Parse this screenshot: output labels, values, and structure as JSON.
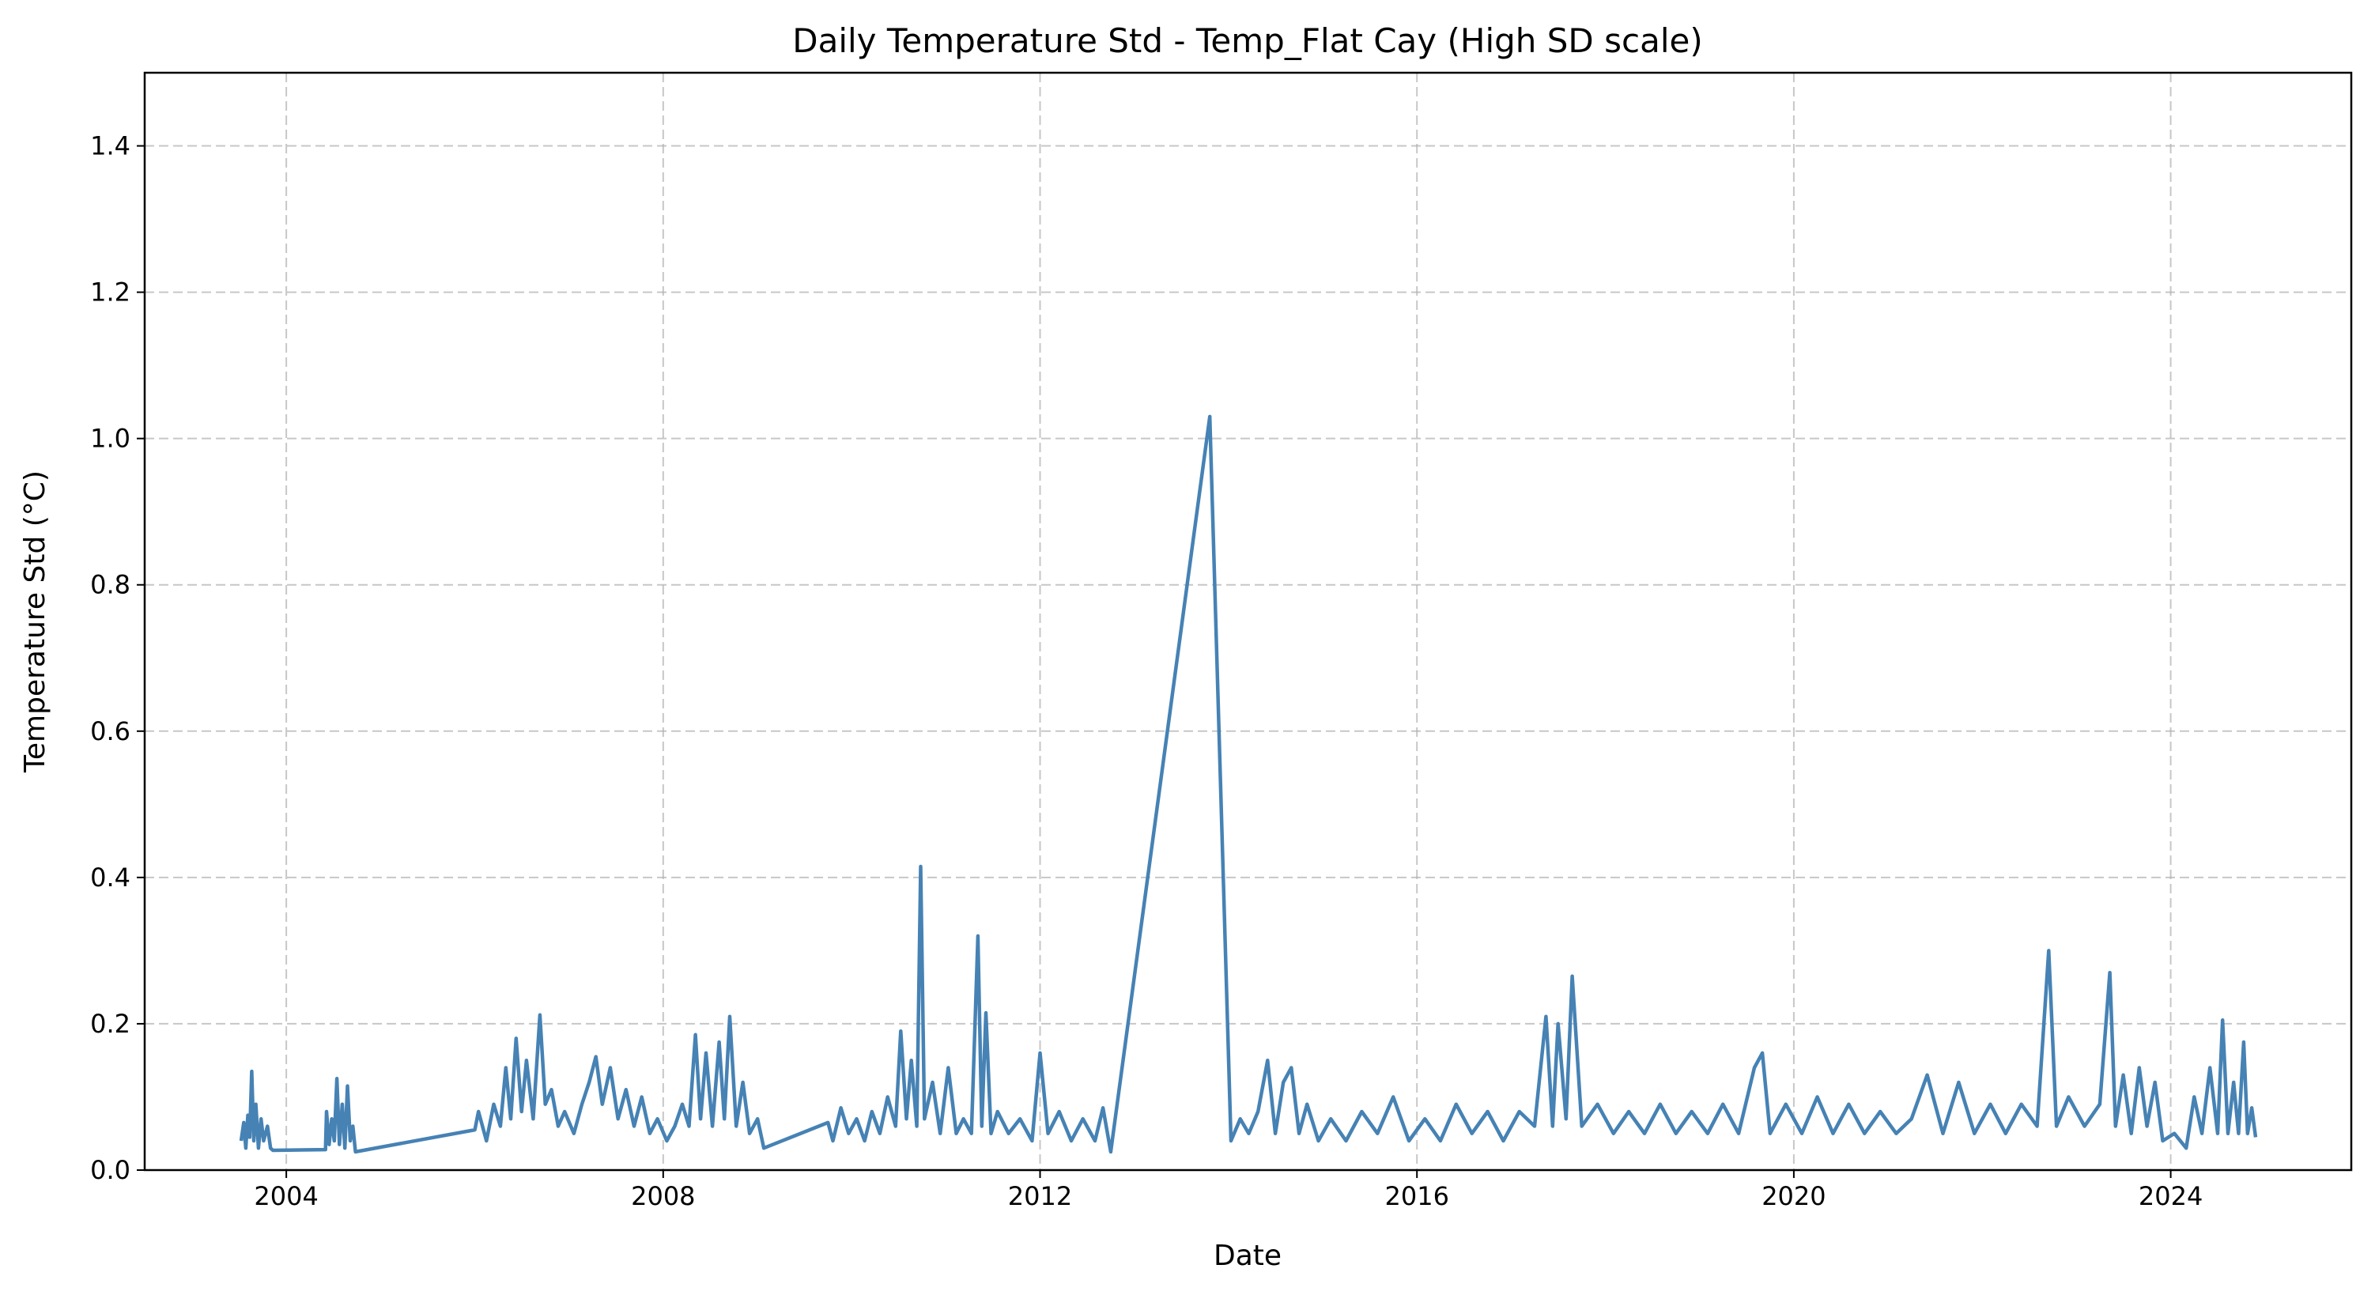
{
  "chart_data": {
    "type": "line",
    "title": "Daily Temperature Std - Temp_Flat Cay (High SD scale)",
    "xlabel": "Date",
    "ylabel": "Temperature Std (°C)",
    "xlim": [
      "2002-07-01",
      "2025-12-01"
    ],
    "ylim": [
      0,
      1.5
    ],
    "x_ticks": [
      "2004",
      "2008",
      "2012",
      "2016",
      "2020",
      "2024"
    ],
    "y_ticks": [
      "0.0",
      "0.2",
      "0.4",
      "0.6",
      "0.8",
      "1.0",
      "1.2",
      "1.4"
    ],
    "grid": true,
    "legend": "none",
    "color": "#4682b4",
    "series": [
      {
        "values": [
          [
            "2003-07-10",
            0.04
          ],
          [
            "2003-07-20",
            0.065
          ],
          [
            "2003-07-28",
            0.03
          ],
          [
            "2003-08-05",
            0.075
          ],
          [
            "2003-08-12",
            0.045
          ],
          [
            "2003-08-20",
            0.135
          ],
          [
            "2003-08-28",
            0.04
          ],
          [
            "2003-09-05",
            0.09
          ],
          [
            "2003-09-15",
            0.03
          ],
          [
            "2003-09-25",
            0.07
          ],
          [
            "2003-10-05",
            0.04
          ],
          [
            "2003-10-20",
            0.06
          ],
          [
            "2003-11-01",
            0.03
          ],
          [
            "2003-11-10",
            0.027
          ],
          [
            "2004-06-01",
            0.028
          ],
          [
            "2004-06-05",
            0.08
          ],
          [
            "2004-06-15",
            0.035
          ],
          [
            "2004-06-25",
            0.07
          ],
          [
            "2004-07-05",
            0.04
          ],
          [
            "2004-07-15",
            0.125
          ],
          [
            "2004-07-25",
            0.035
          ],
          [
            "2004-08-05",
            0.09
          ],
          [
            "2004-08-15",
            0.03
          ],
          [
            "2004-08-25",
            0.115
          ],
          [
            "2004-09-05",
            0.04
          ],
          [
            "2004-09-15",
            0.06
          ],
          [
            "2004-09-25",
            0.025
          ],
          [
            "2006-01-01",
            0.055
          ],
          [
            "2006-01-15",
            0.08
          ],
          [
            "2006-02-15",
            0.04
          ],
          [
            "2006-03-15",
            0.09
          ],
          [
            "2006-04-10",
            0.06
          ],
          [
            "2006-05-01",
            0.14
          ],
          [
            "2006-05-20",
            0.07
          ],
          [
            "2006-06-10",
            0.18
          ],
          [
            "2006-07-01",
            0.08
          ],
          [
            "2006-07-20",
            0.15
          ],
          [
            "2006-08-15",
            0.07
          ],
          [
            "2006-09-10",
            0.212
          ],
          [
            "2006-10-01",
            0.09
          ],
          [
            "2006-10-25",
            0.11
          ],
          [
            "2006-11-20",
            0.06
          ],
          [
            "2006-12-15",
            0.08
          ],
          [
            "2007-01-20",
            0.05
          ],
          [
            "2007-02-20",
            0.09
          ],
          [
            "2007-03-20",
            0.12
          ],
          [
            "2007-04-15",
            0.155
          ],
          [
            "2007-05-10",
            0.09
          ],
          [
            "2007-06-10",
            0.14
          ],
          [
            "2007-07-10",
            0.07
          ],
          [
            "2007-08-10",
            0.11
          ],
          [
            "2007-09-10",
            0.06
          ],
          [
            "2007-10-10",
            0.1
          ],
          [
            "2007-11-10",
            0.05
          ],
          [
            "2007-12-10",
            0.07
          ],
          [
            "2008-01-15",
            0.04
          ],
          [
            "2008-02-15",
            0.06
          ],
          [
            "2008-03-15",
            0.09
          ],
          [
            "2008-04-10",
            0.06
          ],
          [
            "2008-05-05",
            0.185
          ],
          [
            "2008-05-25",
            0.07
          ],
          [
            "2008-06-15",
            0.16
          ],
          [
            "2008-07-10",
            0.06
          ],
          [
            "2008-08-05",
            0.175
          ],
          [
            "2008-08-25",
            0.07
          ],
          [
            "2008-09-15",
            0.21
          ],
          [
            "2008-10-10",
            0.06
          ],
          [
            "2008-11-05",
            0.12
          ],
          [
            "2008-12-01",
            0.05
          ],
          [
            "2009-01-01",
            0.07
          ],
          [
            "2009-01-25",
            0.03
          ],
          [
            "2009-10-01",
            0.065
          ],
          [
            "2009-10-20",
            0.04
          ],
          [
            "2009-11-20",
            0.085
          ],
          [
            "2009-12-20",
            0.05
          ],
          [
            "2010-01-20",
            0.07
          ],
          [
            "2010-02-20",
            0.04
          ],
          [
            "2010-03-20",
            0.08
          ],
          [
            "2010-04-20",
            0.05
          ],
          [
            "2010-05-20",
            0.1
          ],
          [
            "2010-06-20",
            0.06
          ],
          [
            "2010-07-10",
            0.19
          ],
          [
            "2010-08-01",
            0.07
          ],
          [
            "2010-08-20",
            0.15
          ],
          [
            "2010-09-10",
            0.06
          ],
          [
            "2010-09-25",
            0.415
          ],
          [
            "2010-10-10",
            0.07
          ],
          [
            "2010-11-10",
            0.12
          ],
          [
            "2010-12-10",
            0.05
          ],
          [
            "2011-01-10",
            0.14
          ],
          [
            "2011-02-10",
            0.05
          ],
          [
            "2011-03-10",
            0.07
          ],
          [
            "2011-04-10",
            0.05
          ],
          [
            "2011-05-05",
            0.32
          ],
          [
            "2011-05-20",
            0.06
          ],
          [
            "2011-06-05",
            0.215
          ],
          [
            "2011-06-25",
            0.05
          ],
          [
            "2011-07-20",
            0.08
          ],
          [
            "2011-09-01",
            0.05
          ],
          [
            "2011-10-15",
            0.07
          ],
          [
            "2011-12-01",
            0.04
          ],
          [
            "2012-01-01",
            0.16
          ],
          [
            "2012-02-01",
            0.05
          ],
          [
            "2012-03-15",
            0.08
          ],
          [
            "2012-05-01",
            0.04
          ],
          [
            "2012-06-15",
            0.07
          ],
          [
            "2012-08-01",
            0.04
          ],
          [
            "2012-09-01",
            0.085
          ],
          [
            "2012-10-01",
            0.025
          ],
          [
            "2013-10-20",
            1.03
          ],
          [
            "2014-01-10",
            0.04
          ],
          [
            "2014-02-15",
            0.07
          ],
          [
            "2014-03-20",
            0.05
          ],
          [
            "2014-04-25",
            0.08
          ],
          [
            "2014-06-01",
            0.15
          ],
          [
            "2014-07-01",
            0.05
          ],
          [
            "2014-08-01",
            0.12
          ],
          [
            "2014-09-01",
            0.14
          ],
          [
            "2014-10-01",
            0.05
          ],
          [
            "2014-11-01",
            0.09
          ],
          [
            "2014-12-15",
            0.04
          ],
          [
            "2015-02-01",
            0.07
          ],
          [
            "2015-04-01",
            0.04
          ],
          [
            "2015-06-01",
            0.08
          ],
          [
            "2015-08-01",
            0.05
          ],
          [
            "2015-10-01",
            0.1
          ],
          [
            "2015-12-01",
            0.04
          ],
          [
            "2016-02-01",
            0.07
          ],
          [
            "2016-04-01",
            0.04
          ],
          [
            "2016-06-01",
            0.09
          ],
          [
            "2016-08-01",
            0.05
          ],
          [
            "2016-10-01",
            0.08
          ],
          [
            "2016-12-01",
            0.04
          ],
          [
            "2017-02-01",
            0.08
          ],
          [
            "2017-04-01",
            0.06
          ],
          [
            "2017-05-15",
            0.21
          ],
          [
            "2017-06-10",
            0.06
          ],
          [
            "2017-07-01",
            0.2
          ],
          [
            "2017-08-01",
            0.07
          ],
          [
            "2017-08-25",
            0.265
          ],
          [
            "2017-10-01",
            0.06
          ],
          [
            "2017-12-01",
            0.09
          ],
          [
            "2018-02-01",
            0.05
          ],
          [
            "2018-04-01",
            0.08
          ],
          [
            "2018-06-01",
            0.05
          ],
          [
            "2018-08-01",
            0.09
          ],
          [
            "2018-10-01",
            0.05
          ],
          [
            "2018-12-01",
            0.08
          ],
          [
            "2019-02-01",
            0.05
          ],
          [
            "2019-04-01",
            0.09
          ],
          [
            "2019-06-01",
            0.05
          ],
          [
            "2019-08-01",
            0.14
          ],
          [
            "2019-09-01",
            0.16
          ],
          [
            "2019-10-01",
            0.05
          ],
          [
            "2019-12-01",
            0.09
          ],
          [
            "2020-02-01",
            0.05
          ],
          [
            "2020-04-01",
            0.1
          ],
          [
            "2020-06-01",
            0.05
          ],
          [
            "2020-08-01",
            0.09
          ],
          [
            "2020-10-01",
            0.05
          ],
          [
            "2020-12-01",
            0.08
          ],
          [
            "2021-02-01",
            0.05
          ],
          [
            "2021-04-01",
            0.07
          ],
          [
            "2021-06-01",
            0.13
          ],
          [
            "2021-08-01",
            0.05
          ],
          [
            "2021-10-01",
            0.12
          ],
          [
            "2021-12-01",
            0.05
          ],
          [
            "2022-02-01",
            0.09
          ],
          [
            "2022-04-01",
            0.05
          ],
          [
            "2022-06-01",
            0.09
          ],
          [
            "2022-08-01",
            0.06
          ],
          [
            "2022-09-15",
            0.3
          ],
          [
            "2022-10-15",
            0.06
          ],
          [
            "2022-12-01",
            0.1
          ],
          [
            "2023-02-01",
            0.06
          ],
          [
            "2023-04-01",
            0.09
          ],
          [
            "2023-05-10",
            0.27
          ],
          [
            "2023-06-01",
            0.06
          ],
          [
            "2023-07-01",
            0.13
          ],
          [
            "2023-08-01",
            0.05
          ],
          [
            "2023-09-01",
            0.14
          ],
          [
            "2023-10-01",
            0.06
          ],
          [
            "2023-11-01",
            0.12
          ],
          [
            "2023-12-01",
            0.04
          ],
          [
            "2024-01-15",
            0.05
          ],
          [
            "2024-03-01",
            0.03
          ],
          [
            "2024-04-01",
            0.1
          ],
          [
            "2024-05-01",
            0.05
          ],
          [
            "2024-06-01",
            0.14
          ],
          [
            "2024-07-01",
            0.05
          ],
          [
            "2024-07-20",
            0.205
          ],
          [
            "2024-08-10",
            0.05
          ],
          [
            "2024-09-01",
            0.12
          ],
          [
            "2024-09-20",
            0.05
          ],
          [
            "2024-10-10",
            0.175
          ],
          [
            "2024-10-25",
            0.05
          ],
          [
            "2024-11-10",
            0.085
          ],
          [
            "2024-11-25",
            0.045
          ]
        ]
      }
    ]
  }
}
